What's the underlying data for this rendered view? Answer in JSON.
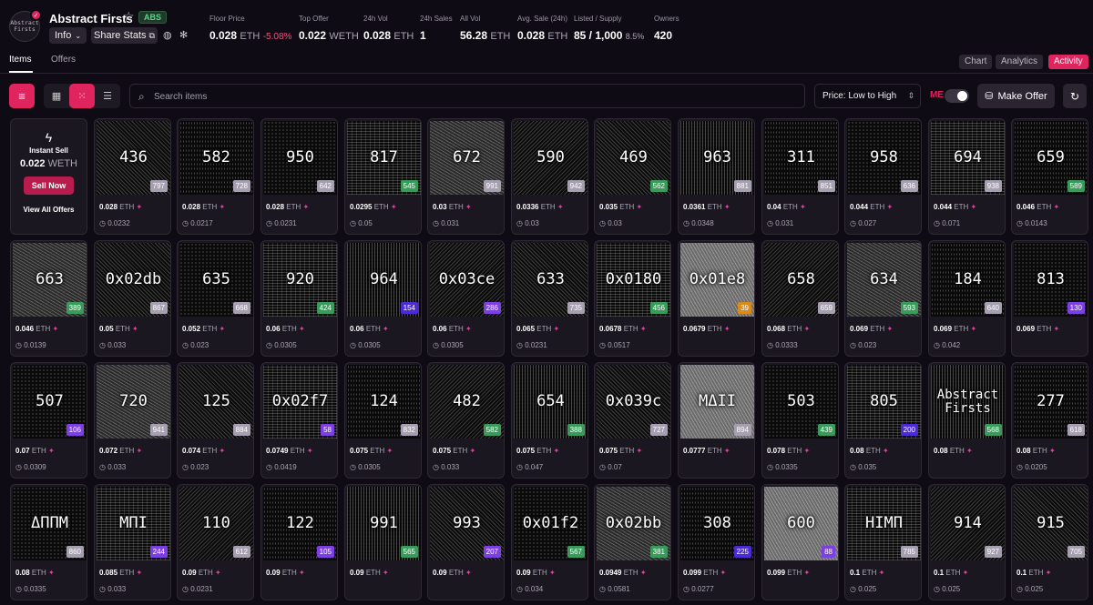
{
  "collection": {
    "logo_lines": [
      "Abstract",
      "Firsts"
    ],
    "name": "Abstract Firsts",
    "badge": "ABS",
    "info_label": "Info",
    "share_label": "Share Stats"
  },
  "stats": [
    {
      "label": "Floor Price",
      "value": "0.028",
      "unit": "ETH",
      "change": "-5.08%"
    },
    {
      "label": "Top Offer",
      "value": "0.022",
      "unit": "WETH"
    },
    {
      "label": "24h Vol",
      "value": "0.028",
      "unit": "ETH"
    },
    {
      "label": "24h Sales",
      "value": "1"
    },
    {
      "label": "All Vol",
      "value": "56.28",
      "unit": "ETH"
    },
    {
      "label": "Avg. Sale (24h)",
      "value": "0.028",
      "unit": "ETH"
    },
    {
      "label": "Listed / Supply",
      "value": "85 / 1,000",
      "pct": "8.5%"
    },
    {
      "label": "Owners",
      "value": "420"
    }
  ],
  "tabs": [
    "Items",
    "Offers"
  ],
  "view_tabs": [
    "Chart",
    "Analytics",
    "Activity"
  ],
  "toolbar": {
    "search_placeholder": "Search items",
    "sort_value": "Price: Low to High",
    "me_logo": "ME",
    "make_offer": "Make Offer"
  },
  "instant_sell": {
    "label": "Instant Sell",
    "amount": "0.022",
    "unit": "WETH",
    "button": "Sell Now",
    "view_all": "View All Offers"
  },
  "colors": {
    "accent": "#e0245e",
    "rank_gray": "#a59fb0",
    "rank_green": "#3a9a5b",
    "rank_purple": "#7b3fe4",
    "rank_indigo": "#4b2bd6",
    "rank_orange": "#d98a1a"
  },
  "items": [
    {
      "name": "436",
      "rank": "797",
      "rc": "gray",
      "price": "0.028",
      "last": "0.0232",
      "p": 0
    },
    {
      "name": "582",
      "rank": "728",
      "rc": "gray",
      "price": "0.028",
      "last": "0.0217",
      "p": 6
    },
    {
      "name": "950",
      "rank": "642",
      "rc": "gray",
      "price": "0.028",
      "last": "0.0231",
      "p": 2
    },
    {
      "name": "817",
      "rank": "545",
      "rc": "green",
      "price": "0.0295",
      "last": "0.05",
      "p": 5
    },
    {
      "name": "672",
      "rank": "991",
      "rc": "gray",
      "price": "0.03",
      "last": "0.031",
      "p": 4
    },
    {
      "name": "590",
      "rank": "942",
      "rc": "gray",
      "price": "0.0336",
      "last": "0.03",
      "p": 3
    },
    {
      "name": "469",
      "rank": "562",
      "rc": "green",
      "price": "0.035",
      "last": "0.03",
      "p": 0
    },
    {
      "name": "963",
      "rank": "881",
      "rc": "gray",
      "price": "0.0361",
      "last": "0.0348",
      "p": 1
    },
    {
      "name": "311",
      "rank": "851",
      "rc": "gray",
      "price": "0.04",
      "last": "0.031",
      "p": 6
    },
    {
      "name": "958",
      "rank": "636",
      "rc": "gray",
      "price": "0.044",
      "last": "0.027",
      "p": 2
    },
    {
      "name": "694",
      "rank": "938",
      "rc": "gray",
      "price": "0.044",
      "last": "0.071",
      "p": 5
    },
    {
      "name": "659",
      "rank": "589",
      "rc": "green",
      "price": "0.046",
      "last": "0.0143",
      "p": 6
    },
    {
      "name": "663",
      "rank": "389",
      "rc": "green",
      "price": "0.046",
      "last": "0.0139",
      "p": 4
    },
    {
      "name": "0x02db",
      "rank": "867",
      "rc": "gray",
      "price": "0.05",
      "last": "0.033",
      "p": 0
    },
    {
      "name": "635",
      "rank": "668",
      "rc": "gray",
      "price": "0.052",
      "last": "0.023",
      "p": 2
    },
    {
      "name": "920",
      "rank": "424",
      "rc": "green",
      "price": "0.06",
      "last": "0.0305",
      "p": 5
    },
    {
      "name": "964",
      "rank": "154",
      "rc": "indigo",
      "price": "0.06",
      "last": "0.0305",
      "p": 1
    },
    {
      "name": "0x03ce",
      "rank": "286",
      "rc": "purple",
      "price": "0.06",
      "last": "0.0305",
      "p": 3
    },
    {
      "name": "633",
      "rank": "735",
      "rc": "gray",
      "price": "0.065",
      "last": "0.0231",
      "p": 0
    },
    {
      "name": "0x0180",
      "rank": "456",
      "rc": "green",
      "price": "0.0678",
      "last": "0.0517",
      "p": 5
    },
    {
      "name": "0x01e8",
      "rank": "39",
      "rc": "orange",
      "price": "0.0679",
      "last": "",
      "p": 7
    },
    {
      "name": "658",
      "rank": "659",
      "rc": "gray",
      "price": "0.068",
      "last": "0.0333",
      "p": 3
    },
    {
      "name": "634",
      "rank": "593",
      "rc": "green",
      "price": "0.069",
      "last": "0.023",
      "p": 4
    },
    {
      "name": "184",
      "rank": "640",
      "rc": "gray",
      "price": "0.069",
      "last": "0.042",
      "p": 6
    },
    {
      "name": "813",
      "rank": "130",
      "rc": "purple",
      "price": "0.069",
      "last": "",
      "p": 2
    },
    {
      "name": "507",
      "rank": "106",
      "rc": "purple",
      "price": "0.07",
      "last": "0.0309",
      "p": 2
    },
    {
      "name": "720",
      "rank": "941",
      "rc": "gray",
      "price": "0.072",
      "last": "0.033",
      "p": 4
    },
    {
      "name": "125",
      "rank": "884",
      "rc": "gray",
      "price": "0.074",
      "last": "0.023",
      "p": 0
    },
    {
      "name": "0x02f7",
      "rank": "58",
      "rc": "purple",
      "price": "0.0749",
      "last": "0.0419",
      "p": 5
    },
    {
      "name": "124",
      "rank": "832",
      "rc": "gray",
      "price": "0.075",
      "last": "0.0305",
      "p": 6
    },
    {
      "name": "482",
      "rank": "582",
      "rc": "green",
      "price": "0.075",
      "last": "0.033",
      "p": 3
    },
    {
      "name": "654",
      "rank": "388",
      "rc": "green",
      "price": "0.075",
      "last": "0.047",
      "p": 1
    },
    {
      "name": "0x039c",
      "rank": "727",
      "rc": "gray",
      "price": "0.075",
      "last": "0.07",
      "p": 0
    },
    {
      "name": "MΔII",
      "rank": "894",
      "rc": "gray",
      "price": "0.0777",
      "last": "",
      "p": 7
    },
    {
      "name": "503",
      "rank": "439",
      "rc": "green",
      "price": "0.078",
      "last": "0.0335",
      "p": 2
    },
    {
      "name": "805",
      "rank": "200",
      "rc": "indigo",
      "price": "0.08",
      "last": "0.035",
      "p": 5
    },
    {
      "name": "Abstract Firsts",
      "rank": "568",
      "rc": "green",
      "price": "0.08",
      "last": "",
      "p": 1,
      "small": true
    },
    {
      "name": "277",
      "rank": "618",
      "rc": "gray",
      "price": "0.08",
      "last": "0.0205",
      "p": 6
    },
    {
      "name": "ΔΠΠΜ",
      "rank": "860",
      "rc": "gray",
      "price": "0.08",
      "last": "0.0335",
      "p": 2
    },
    {
      "name": "MΠI",
      "rank": "244",
      "rc": "purple",
      "price": "0.085",
      "last": "0.033",
      "p": 5
    },
    {
      "name": "110",
      "rank": "612",
      "rc": "gray",
      "price": "0.09",
      "last": "0.0231",
      "p": 3
    },
    {
      "name": "122",
      "rank": "105",
      "rc": "purple",
      "price": "0.09",
      "last": "",
      "p": 6
    },
    {
      "name": "991",
      "rank": "565",
      "rc": "green",
      "price": "0.09",
      "last": "",
      "p": 1
    },
    {
      "name": "993",
      "rank": "207",
      "rc": "purple",
      "price": "0.09",
      "last": "",
      "p": 0
    },
    {
      "name": "0x01f2",
      "rank": "567",
      "rc": "green",
      "price": "0.09",
      "last": "0.034",
      "p": 2
    },
    {
      "name": "0x02bb",
      "rank": "381",
      "rc": "green",
      "price": "0.0949",
      "last": "0.0581",
      "p": 4
    },
    {
      "name": "308",
      "rank": "225",
      "rc": "indigo",
      "price": "0.099",
      "last": "0.0277",
      "p": 6
    },
    {
      "name": "600",
      "rank": "88",
      "rc": "purple",
      "price": "0.099",
      "last": "",
      "p": 7
    },
    {
      "name": "HIMΠ",
      "rank": "785",
      "rc": "gray",
      "price": "0.1",
      "last": "0.025",
      "p": 5
    },
    {
      "name": "914",
      "rank": "927",
      "rc": "gray",
      "price": "0.1",
      "last": "0.025",
      "p": 3
    },
    {
      "name": "915",
      "rank": "705",
      "rc": "gray",
      "price": "0.1",
      "last": "0.025",
      "p": 0
    }
  ],
  "eth_unit": "ETH"
}
